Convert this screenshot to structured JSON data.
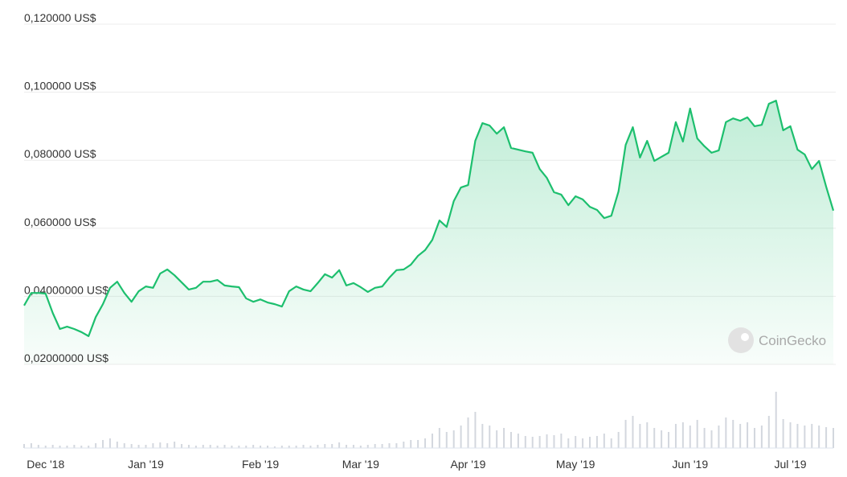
{
  "chart_data": {
    "type": "line",
    "watermark": "CoinGecko",
    "color": "#1dbf6e",
    "volume_color": "#d3d7de",
    "ylim": [
      0.02,
      0.12
    ],
    "yticks": [
      {
        "value": 0.02,
        "label": "0,02000000 US$"
      },
      {
        "value": 0.04,
        "label": "0,04000000 US$"
      },
      {
        "value": 0.06,
        "label": "0,060000 US$"
      },
      {
        "value": 0.08,
        "label": "0,080000 US$"
      },
      {
        "value": 0.1,
        "label": "0,100000 US$"
      },
      {
        "value": 0.12,
        "label": "0,120000 US$"
      }
    ],
    "grid": true,
    "categories": [
      null,
      null,
      null,
      "Dec '18",
      null,
      null,
      null,
      null,
      null,
      null,
      null,
      null,
      null,
      null,
      null,
      null,
      null,
      "Jan '19",
      null,
      null,
      null,
      null,
      null,
      null,
      null,
      null,
      null,
      null,
      null,
      null,
      null,
      null,
      null,
      "Feb '19",
      null,
      null,
      null,
      null,
      null,
      null,
      null,
      null,
      null,
      null,
      null,
      null,
      null,
      "Mar '19",
      null,
      null,
      null,
      null,
      null,
      null,
      null,
      null,
      null,
      null,
      null,
      null,
      null,
      null,
      "Apr '19",
      null,
      null,
      null,
      null,
      null,
      null,
      null,
      null,
      null,
      null,
      null,
      null,
      null,
      null,
      "May '19",
      null,
      null,
      null,
      null,
      null,
      null,
      null,
      null,
      null,
      null,
      null,
      null,
      null,
      null,
      null,
      "Jun '19",
      null,
      null,
      null,
      null,
      null,
      null,
      null,
      null,
      null,
      null,
      null,
      null,
      null,
      "Jul '19",
      null,
      null,
      null,
      null,
      null,
      null
    ],
    "values": [
      0.0373,
      0.041,
      0.041,
      0.0408,
      0.0351,
      0.0304,
      0.0311,
      0.0304,
      0.0295,
      0.0283,
      0.0339,
      0.0377,
      0.0425,
      0.0443,
      0.041,
      0.0384,
      0.0415,
      0.0429,
      0.0425,
      0.0467,
      0.0479,
      0.0462,
      0.0441,
      0.042,
      0.0425,
      0.0443,
      0.0443,
      0.0448,
      0.0432,
      0.0429,
      0.0427,
      0.0394,
      0.0384,
      0.0391,
      0.0382,
      0.0377,
      0.037,
      0.0415,
      0.0429,
      0.042,
      0.0415,
      0.0439,
      0.0465,
      0.0455,
      0.0477,
      0.0432,
      0.0439,
      0.0427,
      0.0413,
      0.0425,
      0.0429,
      0.0455,
      0.0477,
      0.0479,
      0.0493,
      0.0519,
      0.0536,
      0.0566,
      0.0623,
      0.0604,
      0.068,
      0.072,
      0.0727,
      0.0857,
      0.0909,
      0.0902,
      0.0878,
      0.0897,
      0.0836,
      0.0831,
      0.0826,
      0.0822,
      0.0774,
      0.0748,
      0.0706,
      0.0699,
      0.0668,
      0.0694,
      0.0685,
      0.0663,
      0.0654,
      0.063,
      0.0637,
      0.0708,
      0.0845,
      0.0897,
      0.0808,
      0.0857,
      0.0798,
      0.081,
      0.0822,
      0.0912,
      0.0855,
      0.0952,
      0.0864,
      0.0841,
      0.0822,
      0.0829,
      0.0912,
      0.0923,
      0.0916,
      0.0926,
      0.09,
      0.0904,
      0.0966,
      0.0975,
      0.0888,
      0.09,
      0.0831,
      0.0817,
      0.0774,
      0.0798,
      0.0722,
      0.0652
    ],
    "volumes": [
      5,
      6,
      4,
      3,
      4,
      3,
      3,
      4,
      3,
      3,
      6,
      10,
      12,
      8,
      6,
      5,
      4,
      4,
      6,
      7,
      6,
      8,
      5,
      4,
      3,
      4,
      4,
      3,
      4,
      3,
      3,
      3,
      4,
      3,
      3,
      2,
      3,
      3,
      3,
      4,
      3,
      4,
      5,
      5,
      7,
      4,
      4,
      3,
      4,
      5,
      5,
      6,
      6,
      8,
      10,
      10,
      12,
      18,
      25,
      20,
      22,
      28,
      38,
      45,
      30,
      28,
      22,
      25,
      20,
      18,
      15,
      14,
      15,
      17,
      16,
      18,
      12,
      15,
      12,
      14,
      15,
      18,
      12,
      20,
      35,
      40,
      30,
      32,
      25,
      22,
      20,
      30,
      32,
      28,
      35,
      25,
      22,
      28,
      38,
      35,
      30,
      32,
      25,
      28,
      40,
      70,
      36,
      32,
      30,
      28,
      30,
      28,
      26,
      25
    ]
  }
}
